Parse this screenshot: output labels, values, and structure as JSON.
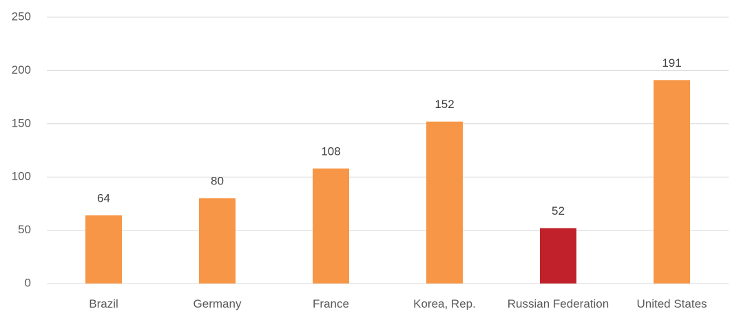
{
  "chart_data": {
    "type": "bar",
    "categories": [
      "Brazil",
      "Germany",
      "France",
      "Korea, Rep.",
      "Russian Federation",
      "United States"
    ],
    "values": [
      64,
      80,
      108,
      152,
      52,
      191
    ],
    "colors": [
      "#f79646",
      "#f79646",
      "#f79646",
      "#f79646",
      "#c0212a",
      "#f79646"
    ],
    "ylim": [
      0,
      250
    ],
    "yticks": [
      0,
      50,
      100,
      150,
      200,
      250
    ],
    "grid": true
  }
}
